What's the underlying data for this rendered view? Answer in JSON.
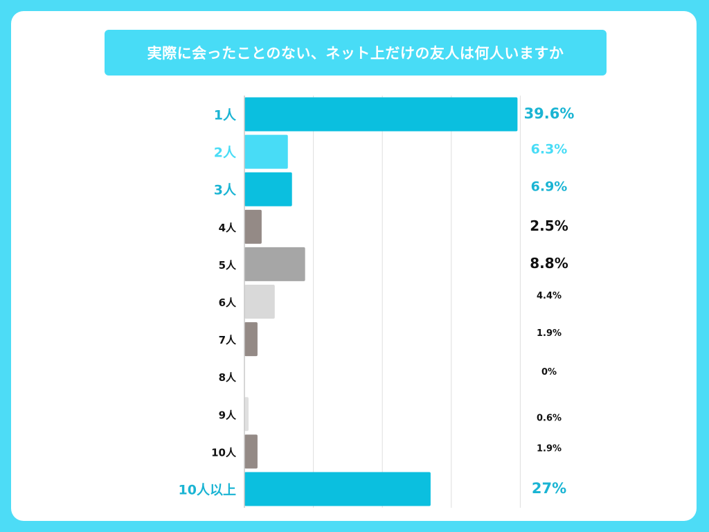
{
  "title": "実際に会ったことのない、ネット上だけの友人は何人いますか",
  "chart_data": {
    "type": "bar",
    "orientation": "horizontal",
    "title": "実際に会ったことのない、ネット上だけの友人は何人いますか",
    "categories": [
      "1人",
      "2人",
      "3人",
      "4人",
      "5人",
      "6人",
      "7人",
      "8人",
      "9人",
      "10人",
      "10人以上"
    ],
    "values": [
      39.6,
      6.3,
      6.9,
      2.5,
      8.8,
      4.4,
      1.9,
      0,
      0.6,
      1.9,
      27
    ],
    "value_labels": [
      "39.6%",
      "6.3%",
      "6.9%",
      "2.5%",
      "8.8%",
      "4.4%",
      "1.9%",
      "0%",
      "0.6%",
      "1.9%",
      "27%"
    ],
    "bar_colors": [
      "#0bbfdf",
      "#48dcf6",
      "#0bbfdf",
      "#948a86",
      "#a6a6a6",
      "#d9d9d9",
      "#948a86",
      "#d9d9d9",
      "#e0e0e0",
      "#948a86",
      "#0bbfdf"
    ],
    "label_colors": [
      "#1ab4d3",
      "#48dcf6",
      "#1ab4d3",
      "#111111",
      "#111111",
      "#111111",
      "#111111",
      "#111111",
      "#111111",
      "#111111",
      "#1ab4d3"
    ],
    "xlim": [
      0,
      40
    ],
    "grid": true,
    "xlabel": "",
    "ylabel": ""
  }
}
